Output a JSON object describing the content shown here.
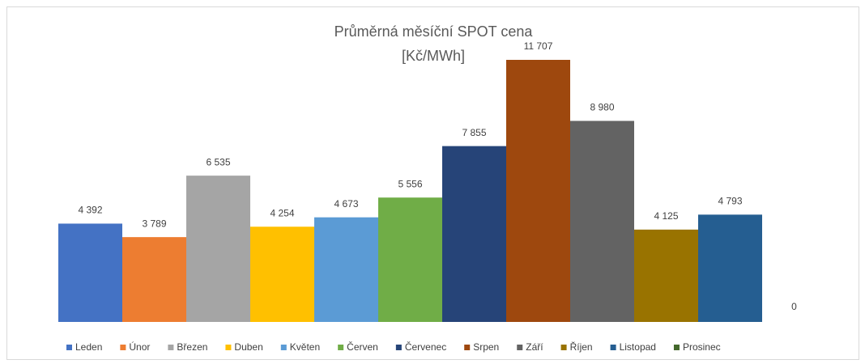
{
  "chart_data": {
    "type": "bar",
    "title": "Průměrná měsíční SPOT cena",
    "subtitle": "[Kč/MWh]",
    "categories": [
      null
    ],
    "series": [
      {
        "name": "Leden",
        "color": "#4472c4",
        "values": [
          4392
        ],
        "value_labels": [
          "4 392"
        ]
      },
      {
        "name": "Únor",
        "color": "#ed7d31",
        "values": [
          3789
        ],
        "value_labels": [
          "3 789"
        ]
      },
      {
        "name": "Březen",
        "color": "#a5a5a5",
        "values": [
          6535
        ],
        "value_labels": [
          "6 535"
        ]
      },
      {
        "name": "Duben",
        "color": "#ffc000",
        "values": [
          4254
        ],
        "value_labels": [
          "4 254"
        ]
      },
      {
        "name": "Květen",
        "color": "#5b9bd5",
        "values": [
          4673
        ],
        "value_labels": [
          "4 673"
        ]
      },
      {
        "name": "Červen",
        "color": "#70ad47",
        "values": [
          5556
        ],
        "value_labels": [
          "5 556"
        ]
      },
      {
        "name": "Červenec",
        "color": "#264478",
        "values": [
          7855
        ],
        "value_labels": [
          "7 855"
        ]
      },
      {
        "name": "Srpen",
        "color": "#9e480e",
        "values": [
          11707
        ],
        "value_labels": [
          "11 707"
        ]
      },
      {
        "name": "Září",
        "color": "#636363",
        "values": [
          8980
        ],
        "value_labels": [
          "8 980"
        ]
      },
      {
        "name": "Říjen",
        "color": "#997300",
        "values": [
          4125
        ],
        "value_labels": [
          "4 125"
        ]
      },
      {
        "name": "Listopad",
        "color": "#255e91",
        "values": [
          4793
        ],
        "value_labels": [
          "4 793"
        ]
      },
      {
        "name": "Prosinec",
        "color": "#43682b",
        "values": [
          0
        ],
        "value_labels": [
          "0"
        ]
      }
    ],
    "legend": "bottom"
  }
}
